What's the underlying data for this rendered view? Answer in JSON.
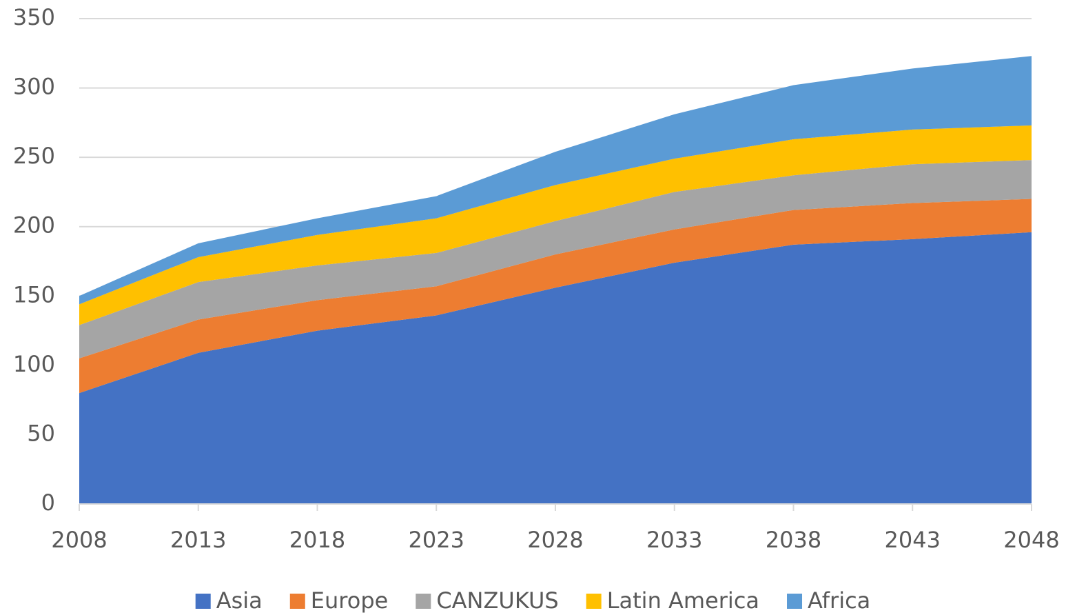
{
  "chart_data": {
    "type": "stacked_area",
    "categories": [
      "2008",
      "2013",
      "2018",
      "2023",
      "2028",
      "2033",
      "2038",
      "2043",
      "2048"
    ],
    "series": [
      {
        "name": "Asia",
        "color": "#4472c4",
        "values": [
          80,
          109,
          125,
          136,
          156,
          174,
          187,
          191,
          196
        ]
      },
      {
        "name": "Europe",
        "color": "#ed7d31",
        "values": [
          25,
          24,
          22,
          21,
          24,
          24,
          25,
          26,
          24
        ]
      },
      {
        "name": "CANZUKUS",
        "color": "#a5a5a5",
        "values": [
          24,
          27,
          25,
          24,
          24,
          27,
          25,
          28,
          28
        ]
      },
      {
        "name": "Latin America",
        "color": "#ffc000",
        "values": [
          15,
          18,
          22,
          25,
          26,
          24,
          26,
          25,
          25
        ]
      },
      {
        "name": "Africa",
        "color": "#5b9bd5",
        "values": [
          6,
          10,
          12,
          16,
          24,
          32,
          39,
          44,
          50
        ]
      }
    ],
    "ylim": [
      0,
      350
    ],
    "yticks": [
      0,
      50,
      100,
      150,
      200,
      250,
      300,
      350
    ],
    "grid": true,
    "legend": "bottom"
  }
}
